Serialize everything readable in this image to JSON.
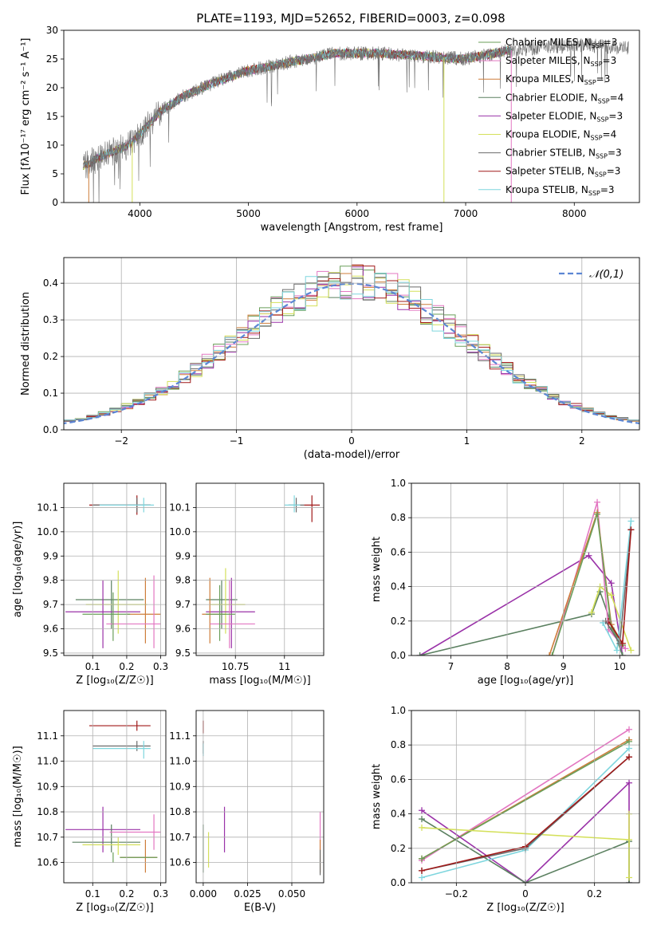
{
  "figure": {
    "title": "PLATE=1193, MJD=52652, FIBERID=0003, z=0.098"
  },
  "colors": {
    "Chabrier MILES": "#6a9f5a",
    "Salpeter MILES": "#e377c2",
    "Kroupa MILES": "#ce7d3a",
    "Chabrier ELODIE": "#5b8060",
    "Salpeter ELODIE": "#9a32a8",
    "Kroupa ELODIE": "#d4e05a",
    "Chabrier STELIB": "#6b6b6b",
    "Salpeter STELIB": "#a01919",
    "Kroupa STELIB": "#7fd6de",
    "normal": "#5b86d4"
  },
  "legend_spectrum": [
    {
      "label": "Chabrier MILES, N",
      "sub": "SSP",
      "tail": "=3",
      "key": "Chabrier MILES"
    },
    {
      "label": "Salpeter MILES, N",
      "sub": "SSP",
      "tail": "=3",
      "key": "Salpeter MILES"
    },
    {
      "label": "Kroupa MILES, N",
      "sub": "SSP",
      "tail": "=3",
      "key": "Kroupa MILES"
    },
    {
      "label": "Chabrier ELODIE, N",
      "sub": "SSP",
      "tail": "=4",
      "key": "Chabrier ELODIE"
    },
    {
      "label": "Salpeter ELODIE, N",
      "sub": "SSP",
      "tail": "=3",
      "key": "Salpeter ELODIE"
    },
    {
      "label": "Kroupa ELODIE, N",
      "sub": "SSP",
      "tail": "=4",
      "key": "Kroupa ELODIE"
    },
    {
      "label": "Chabrier STELIB, N",
      "sub": "SSP",
      "tail": "=3",
      "key": "Chabrier STELIB"
    },
    {
      "label": "Salpeter STELIB, N",
      "sub": "SSP",
      "tail": "=3",
      "key": "Salpeter STELIB"
    },
    {
      "label": "Kroupa STELIB, N",
      "sub": "SSP",
      "tail": "=3",
      "key": "Kroupa STELIB"
    }
  ],
  "chart_data": [
    {
      "id": "spectrum",
      "type": "line",
      "title": "PLATE=1193, MJD=52652, FIBERID=0003, z=0.098",
      "xlabel": "wavelength [Angstrom, rest frame]",
      "ylabel": "Flux [fλ10⁻¹⁷ erg cm⁻² s⁻¹ A⁻¹]",
      "xlim": [
        3300,
        8600
      ],
      "ylim": [
        0,
        30
      ],
      "xticks": [
        4000,
        5000,
        6000,
        7000,
        8000
      ],
      "yticks": [
        0,
        5,
        10,
        15,
        20,
        25,
        30
      ],
      "continuum": [
        [
          3500,
          6.5
        ],
        [
          3700,
          8.5
        ],
        [
          3900,
          10
        ],
        [
          4000,
          12
        ],
        [
          4200,
          16
        ],
        [
          4400,
          18.5
        ],
        [
          4700,
          21
        ],
        [
          5000,
          23
        ],
        [
          5400,
          24.5
        ],
        [
          5800,
          26
        ],
        [
          6200,
          26
        ],
        [
          6600,
          25.5
        ],
        [
          7000,
          25
        ],
        [
          7400,
          26.5
        ],
        [
          7700,
          27
        ],
        [
          8100,
          27.5
        ],
        [
          8400,
          27
        ]
      ],
      "data_x_range": [
        3480,
        8500
      ],
      "model_x_range": [
        3480,
        7420
      ],
      "drop_lines": [
        {
          "x": 6800,
          "color": "Kroupa ELODIE"
        },
        {
          "x": 7420,
          "color": "Salpeter MILES"
        },
        {
          "x": 3930,
          "color": "Kroupa ELODIE"
        },
        {
          "x": 3530,
          "color": "Kroupa MILES"
        }
      ]
    },
    {
      "id": "residual_histogram",
      "type": "histogram",
      "xlabel": "(data-model)/error",
      "ylabel": "Normed distribution",
      "xlim": [
        -2.5,
        2.5
      ],
      "ylim": [
        0,
        0.47
      ],
      "xticks": [
        -2,
        -1,
        0,
        1,
        2
      ],
      "yticks": [
        0.0,
        0.1,
        0.2,
        0.3,
        0.4
      ],
      "bin_width": 0.1,
      "gaussian_label": "𝒩(0,1)",
      "series": [
        {
          "key": "Chabrier MILES"
        },
        {
          "key": "Salpeter MILES"
        },
        {
          "key": "Kroupa MILES"
        },
        {
          "key": "Chabrier ELODIE"
        },
        {
          "key": "Salpeter ELODIE"
        },
        {
          "key": "Kroupa ELODIE"
        },
        {
          "key": "Chabrier STELIB"
        },
        {
          "key": "Salpeter STELIB"
        },
        {
          "key": "Kroupa STELIB"
        }
      ]
    },
    {
      "id": "age_vs_Z",
      "type": "scatter",
      "xlabel": "Z [log₁₀(Z/Z☉)]",
      "ylabel": "age  [log₁₀(age/yr)]",
      "xlim": [
        0.015,
        0.315
      ],
      "ylim": [
        9.49,
        10.2
      ],
      "xticks": [
        0.1,
        0.2,
        0.3
      ],
      "yticks": [
        9.5,
        9.6,
        9.7,
        9.8,
        9.9,
        10.0,
        10.1
      ],
      "points": [
        {
          "key": "Salpeter STELIB",
          "x": 0.23,
          "y": 10.11,
          "xerr": [
            0.09,
            0.27
          ],
          "yerr": [
            10.07,
            10.15
          ]
        },
        {
          "key": "Chabrier STELIB",
          "x": 0.23,
          "y": 10.11,
          "xerr": [
            0.1,
            0.27
          ],
          "yerr": [
            10.08,
            10.14
          ]
        },
        {
          "key": "Kroupa STELIB",
          "x": 0.25,
          "y": 10.11,
          "xerr": [
            0.12,
            0.28
          ],
          "yerr": [
            10.08,
            10.14
          ]
        },
        {
          "key": "Chabrier ELODIE",
          "x": 0.155,
          "y": 9.72,
          "xerr": [
            0.05,
            0.25
          ],
          "yerr": [
            9.6,
            9.8
          ]
        },
        {
          "key": "Kroupa ELODIE",
          "x": 0.175,
          "y": 9.7,
          "xerr": [
            0.08,
            0.26
          ],
          "yerr": [
            9.58,
            9.84
          ]
        },
        {
          "key": "Salpeter ELODIE",
          "x": 0.13,
          "y": 9.67,
          "xerr": [
            0.02,
            0.24
          ],
          "yerr": [
            9.52,
            9.8
          ]
        },
        {
          "key": "Kroupa MILES",
          "x": 0.255,
          "y": 9.66,
          "xerr": [
            0.2,
            0.3
          ],
          "yerr": [
            9.54,
            9.81
          ]
        },
        {
          "key": "Salpeter MILES",
          "x": 0.28,
          "y": 9.62,
          "xerr": [
            0.14,
            0.3
          ],
          "yerr": [
            9.52,
            9.82
          ]
        },
        {
          "key": "Chabrier MILES",
          "x": 0.16,
          "y": 9.66,
          "xerr": [
            0.07,
            0.21
          ],
          "yerr": [
            9.55,
            9.75
          ]
        }
      ]
    },
    {
      "id": "age_vs_mass",
      "type": "scatter",
      "xlabel": "mass [log₁₀(M/M☉)]",
      "ylabel": "",
      "xlim": [
        10.55,
        11.2
      ],
      "ylim": [
        9.49,
        10.2
      ],
      "xticks": [
        10.75,
        11.0
      ],
      "yticks": [
        9.5,
        9.6,
        9.7,
        9.8,
        9.9,
        10.0,
        10.1
      ],
      "points": [
        {
          "key": "Salpeter STELIB",
          "x": 11.14,
          "y": 10.11,
          "xerr": [
            11.1,
            11.18
          ],
          "yerr": [
            10.04,
            10.15
          ]
        },
        {
          "key": "Chabrier STELIB",
          "x": 11.06,
          "y": 10.11,
          "xerr": [
            11.02,
            11.1
          ],
          "yerr": [
            10.08,
            10.14
          ]
        },
        {
          "key": "Kroupa STELIB",
          "x": 11.05,
          "y": 10.11,
          "xerr": [
            11.0,
            11.08
          ],
          "yerr": [
            10.08,
            10.15
          ]
        },
        {
          "key": "Chabrier ELODIE",
          "x": 10.68,
          "y": 9.72,
          "xerr": [
            10.6,
            10.76
          ],
          "yerr": [
            9.6,
            9.8
          ]
        },
        {
          "key": "Kroupa ELODIE",
          "x": 10.7,
          "y": 9.7,
          "xerr": [
            10.62,
            10.8
          ],
          "yerr": [
            9.58,
            9.85
          ]
        },
        {
          "key": "Salpeter ELODIE",
          "x": 10.73,
          "y": 9.67,
          "xerr": [
            10.6,
            10.85
          ],
          "yerr": [
            9.52,
            9.81
          ]
        },
        {
          "key": "Kroupa MILES",
          "x": 10.62,
          "y": 9.66,
          "xerr": [
            10.58,
            10.7
          ],
          "yerr": [
            9.54,
            9.81
          ]
        },
        {
          "key": "Salpeter MILES",
          "x": 10.72,
          "y": 9.62,
          "xerr": [
            10.62,
            10.85
          ],
          "yerr": [
            9.52,
            9.8
          ]
        },
        {
          "key": "Chabrier MILES",
          "x": 10.67,
          "y": 9.66,
          "xerr": [
            10.6,
            10.75
          ],
          "yerr": [
            9.55,
            9.78
          ]
        }
      ]
    },
    {
      "id": "massweight_vs_age",
      "type": "line",
      "xlabel": "age  [log₁₀(age/yr)]",
      "ylabel": "mass weight",
      "xlim": [
        6.3,
        10.35
      ],
      "ylim": [
        0,
        1.0
      ],
      "xticks": [
        7,
        8,
        9,
        10
      ],
      "yticks": [
        0.0,
        0.2,
        0.4,
        0.6,
        0.8,
        1.0
      ],
      "series": [
        {
          "key": "Salpeter ELODIE",
          "x": [
            6.45,
            9.45,
            9.85,
            10.05
          ],
          "y": [
            0.0,
            0.58,
            0.42,
            0.0
          ]
        },
        {
          "key": "Chabrier ELODIE",
          "x": [
            6.45,
            9.5,
            9.65,
            10.05
          ],
          "y": [
            0.0,
            0.24,
            0.37,
            0.0
          ]
        },
        {
          "key": "Kroupa ELODIE",
          "x": [
            9.5,
            9.65,
            9.85,
            10.2
          ],
          "y": [
            0.25,
            0.4,
            0.35,
            0.03
          ]
        },
        {
          "key": "Salpeter MILES",
          "x": [
            8.8,
            9.6,
            9.8,
            10.1
          ],
          "y": [
            0.0,
            0.89,
            0.15,
            0.04
          ]
        },
        {
          "key": "Kroupa MILES",
          "x": [
            8.75,
            9.6,
            9.85,
            10.05
          ],
          "y": [
            0.0,
            0.83,
            0.18,
            0.07
          ]
        },
        {
          "key": "Chabrier MILES",
          "x": [
            8.8,
            9.6,
            9.85,
            10.05
          ],
          "y": [
            0.0,
            0.82,
            0.16,
            0.06
          ]
        },
        {
          "key": "Kroupa STELIB",
          "x": [
            9.7,
            9.95,
            10.2
          ],
          "y": [
            0.19,
            0.03,
            0.78
          ]
        },
        {
          "key": "Chabrier STELIB",
          "x": [
            9.75,
            10.0,
            10.2
          ],
          "y": [
            0.2,
            0.07,
            0.73
          ]
        },
        {
          "key": "Salpeter STELIB",
          "x": [
            9.8,
            10.05,
            10.2
          ],
          "y": [
            0.2,
            0.07,
            0.73
          ]
        }
      ]
    },
    {
      "id": "mass_vs_Z",
      "type": "scatter",
      "xlabel": "Z [log₁₀(Z/Z☉)]",
      "ylabel": "mass [log₁₀(M/M☉)]",
      "xlim": [
        0.015,
        0.315
      ],
      "ylim": [
        10.52,
        11.2
      ],
      "xticks": [
        0.1,
        0.2,
        0.3
      ],
      "yticks": [
        10.6,
        10.7,
        10.8,
        10.9,
        11.0,
        11.1
      ],
      "points": [
        {
          "key": "Salpeter STELIB",
          "x": 0.23,
          "y": 11.14,
          "xerr": [
            0.09,
            0.27
          ],
          "yerr": [
            11.12,
            11.16
          ]
        },
        {
          "key": "Chabrier STELIB",
          "x": 0.23,
          "y": 11.06,
          "xerr": [
            0.1,
            0.27
          ],
          "yerr": [
            11.04,
            11.08
          ]
        },
        {
          "key": "Kroupa STELIB",
          "x": 0.25,
          "y": 11.05,
          "xerr": [
            0.1,
            0.27
          ],
          "yerr": [
            11.01,
            11.08
          ]
        },
        {
          "key": "Salpeter ELODIE",
          "x": 0.13,
          "y": 10.73,
          "xerr": [
            0.02,
            0.24
          ],
          "yerr": [
            10.64,
            10.82
          ]
        },
        {
          "key": "Chabrier ELODIE",
          "x": 0.155,
          "y": 10.68,
          "xerr": [
            0.04,
            0.24
          ],
          "yerr": [
            10.64,
            10.75
          ]
        },
        {
          "key": "Kroupa ELODIE",
          "x": 0.175,
          "y": 10.67,
          "xerr": [
            0.07,
            0.24
          ],
          "yerr": [
            10.63,
            10.7
          ]
        },
        {
          "key": "Salpeter MILES",
          "x": 0.28,
          "y": 10.72,
          "xerr": [
            0.15,
            0.3
          ],
          "yerr": [
            10.65,
            10.79
          ]
        },
        {
          "key": "Kroupa MILES",
          "x": 0.255,
          "y": 10.62,
          "xerr": [
            0.18,
            0.29
          ],
          "yerr": [
            10.56,
            10.69
          ]
        },
        {
          "key": "Chabrier MILES",
          "x": 0.16,
          "y": 10.62,
          "xerr": [
            0.18,
            0.29
          ],
          "yerr": [
            10.6,
            10.64
          ]
        }
      ]
    },
    {
      "id": "mass_vs_EBV",
      "type": "scatter",
      "xlabel": "E(B-V)",
      "ylabel": "",
      "xlim": [
        -0.004,
        0.068
      ],
      "ylim": [
        10.52,
        11.2
      ],
      "xticks": [
        0.0,
        0.025,
        0.05
      ],
      "xticklabels": [
        "0.000",
        "0.025",
        "0.050"
      ],
      "yticks": [
        10.6,
        10.7,
        10.8,
        10.9,
        11.0,
        11.1
      ],
      "points": [
        {
          "key": "Salpeter STELIB",
          "x": 0.0,
          "y": 11.14,
          "yerr": [
            11.11,
            11.16
          ]
        },
        {
          "key": "Chabrier STELIB",
          "x": 0.0,
          "y": 11.06,
          "yerr": [
            11.03,
            11.08
          ]
        },
        {
          "key": "Kroupa STELIB",
          "x": 0.0,
          "y": 11.05,
          "yerr": [
            11.02,
            11.07
          ]
        },
        {
          "key": "Chabrier ELODIE",
          "x": 0.0,
          "y": 10.68,
          "yerr": [
            10.56,
            10.75
          ]
        },
        {
          "key": "Kroupa ELODIE",
          "x": 0.003,
          "y": 10.65,
          "yerr": [
            10.58,
            10.72
          ]
        },
        {
          "key": "Salpeter ELODIE",
          "x": 0.012,
          "y": 10.73,
          "yerr": [
            10.64,
            10.82
          ]
        },
        {
          "key": "Salpeter MILES",
          "x": 0.066,
          "y": 10.72,
          "yerr": [
            10.65,
            10.8
          ]
        },
        {
          "key": "Kroupa MILES",
          "x": 0.066,
          "y": 10.62,
          "yerr": [
            10.56,
            10.69
          ]
        },
        {
          "key": "Chabrier STELIB2",
          "x": 0.066,
          "y": 10.6,
          "yerr": [
            10.55,
            10.65
          ]
        }
      ]
    },
    {
      "id": "massweight_vs_Z",
      "type": "line",
      "xlabel": "Z [log₁₀(Z/Z☉)]",
      "ylabel": "mass weight",
      "xlim": [
        -0.33,
        0.33
      ],
      "ylim": [
        0,
        1.0
      ],
      "xticks": [
        -0.2,
        0.0,
        0.2
      ],
      "yticks": [
        0.0,
        0.2,
        0.4,
        0.6,
        0.8,
        1.0
      ],
      "series": [
        {
          "key": "Salpeter MILES",
          "x": [
            -0.3,
            0.3
          ],
          "y": [
            0.13,
            0.89
          ]
        },
        {
          "key": "Kroupa MILES",
          "x": [
            -0.3,
            0.3
          ],
          "y": [
            0.14,
            0.83
          ]
        },
        {
          "key": "Chabrier MILES",
          "x": [
            -0.3,
            0.3
          ],
          "y": [
            0.14,
            0.82
          ]
        },
        {
          "key": "Salpeter ELODIE",
          "x": [
            -0.3,
            0.0,
            0.3,
            0.3
          ],
          "y": [
            0.42,
            0.0,
            0.58,
            0.0
          ]
        },
        {
          "key": "Chabrier ELODIE",
          "x": [
            -0.3,
            0.0,
            0.3,
            0.3
          ],
          "y": [
            0.37,
            0.0,
            0.24,
            0.0
          ]
        },
        {
          "key": "Kroupa ELODIE",
          "x": [
            -0.3,
            0.3,
            0.3,
            0.3
          ],
          "y": [
            0.32,
            0.25,
            0.4,
            0.03
          ]
        },
        {
          "key": "Kroupa STELIB",
          "x": [
            -0.3,
            0.0,
            0.3
          ],
          "y": [
            0.03,
            0.19,
            0.78
          ]
        },
        {
          "key": "Chabrier STELIB",
          "x": [
            -0.3,
            0.0,
            0.3
          ],
          "y": [
            0.07,
            0.2,
            0.73
          ]
        },
        {
          "key": "Salpeter STELIB",
          "x": [
            -0.3,
            0.0,
            0.3
          ],
          "y": [
            0.07,
            0.21,
            0.73
          ]
        }
      ]
    }
  ]
}
